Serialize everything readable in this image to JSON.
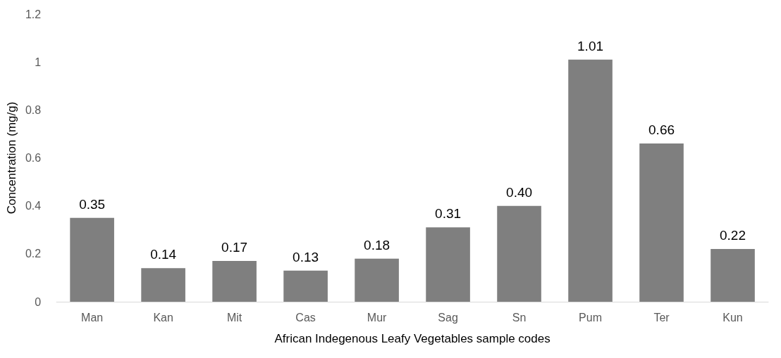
{
  "chart_data": {
    "type": "bar",
    "xlabel": "African Indegenous Leafy Vegetables sample codes",
    "ylabel": "Concentration (mg/g)",
    "categories": [
      "Man",
      "Kan",
      "Mit",
      "Cas",
      "Mur",
      "Sag",
      "Sn",
      "Pum",
      "Ter",
      "Kun"
    ],
    "values": [
      0.35,
      0.14,
      0.17,
      0.13,
      0.18,
      0.31,
      0.4,
      1.01,
      0.66,
      0.22
    ],
    "value_labels": [
      "0.35",
      "0.14",
      "0.17",
      "0.13",
      "0.18",
      "0.31",
      "0.40",
      "1.01",
      "0.66",
      "0.22"
    ],
    "color": "#7f7f7f",
    "ylim": [
      0,
      1.2
    ],
    "yticks": [
      0,
      0.2,
      0.4,
      0.6,
      0.8,
      1,
      1.2
    ],
    "grid": false
  }
}
